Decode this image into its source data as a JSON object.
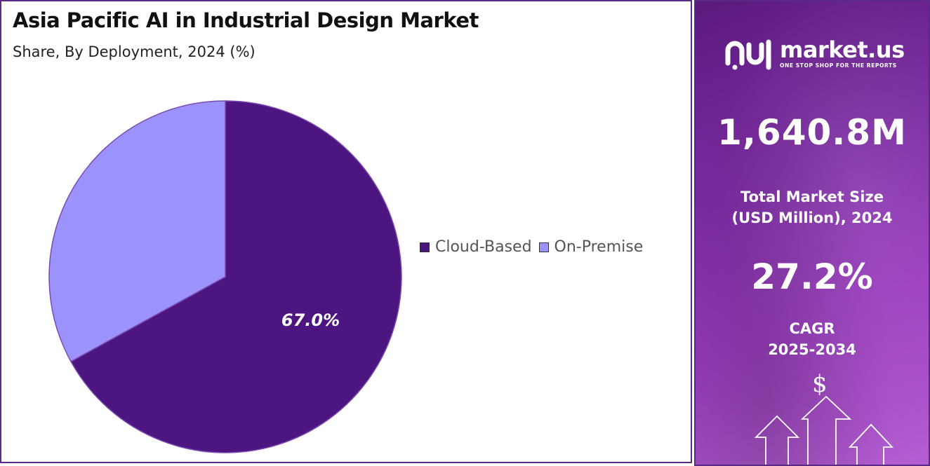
{
  "colors": {
    "cloud_based": "#4d1580",
    "on_premise": "#9b92fb",
    "border": "#5a2a86",
    "panel_gradient": [
      "#5b1a7e",
      "#b45fd2"
    ]
  },
  "chart_data": {
    "type": "pie",
    "title": "Asia Pacific AI in Industrial Design Market",
    "subtitle": "Share, By Deployment, 2024 (%)",
    "slices": [
      {
        "name": "Cloud-Based",
        "value": 67.0,
        "color": "#4d1580",
        "label": "67.0%"
      },
      {
        "name": "On-Premise",
        "value": 33.0,
        "color": "#9b92fb",
        "label": ""
      }
    ],
    "legend_position": "right"
  },
  "legend": {
    "items": [
      {
        "label": "Cloud-Based",
        "color": "#4d1580"
      },
      {
        "label": "On-Premise",
        "color": "#9b92fb"
      }
    ]
  },
  "brand": {
    "name": "market.us",
    "tagline": "ONE STOP SHOP FOR THE REPORTS",
    "logo_icon": "market-us-logo-icon"
  },
  "stats": {
    "market_size_value": "1,640.8M",
    "market_size_label_line1": "Total Market Size",
    "market_size_label_line2": "(USD Million), 2024",
    "cagr_value": "27.2%",
    "cagr_label_line1": "CAGR",
    "cagr_label_line2": "2025-2034",
    "currency_symbol": "$"
  }
}
